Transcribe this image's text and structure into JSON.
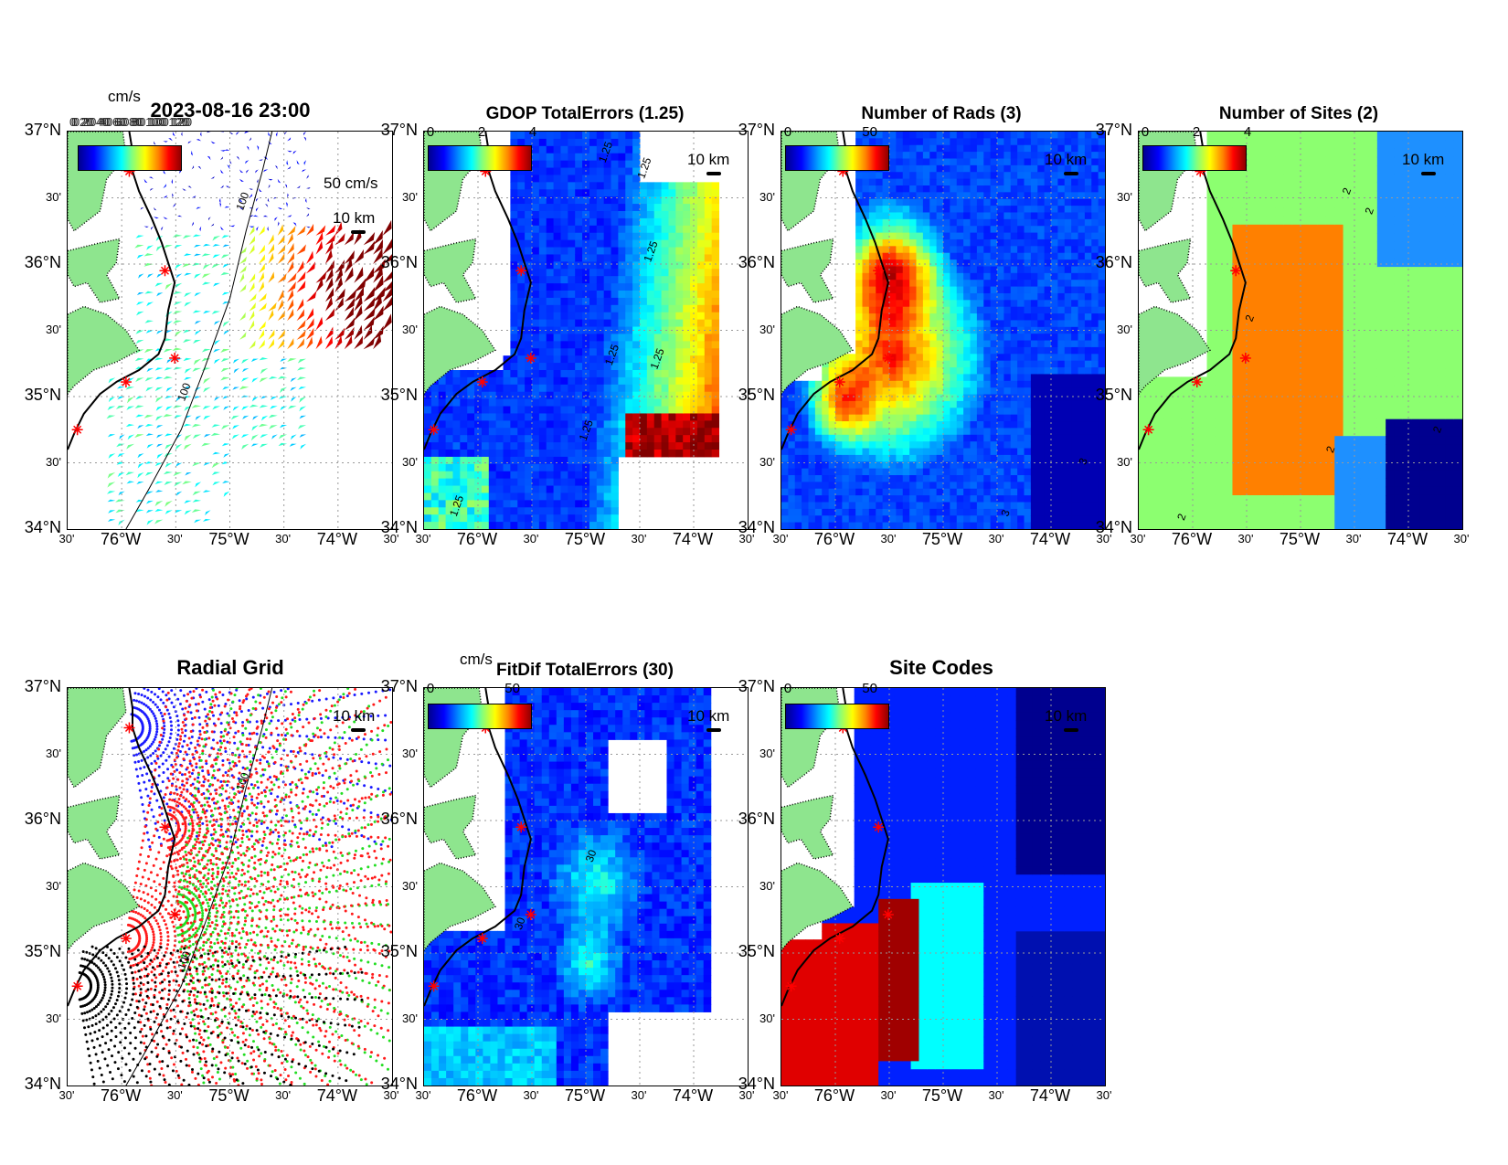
{
  "colors": {
    "land": "#8ee58e",
    "jet_low": "#00008f",
    "jet_high": "#8f0000",
    "site_marker": "#ff0000",
    "grid_blue": "#1a1aff",
    "grid_red": "#ff1a1a",
    "grid_green": "#22dd22",
    "grid_black": "#000000"
  },
  "axes": {
    "y_labels": [
      "37°N",
      "30'",
      "36°N",
      "30'",
      "35°N",
      "30'",
      "34°N"
    ],
    "x_labels": [
      "30'",
      "76°W",
      "30'",
      "75°W",
      "30'",
      "74°W",
      "30'"
    ],
    "lat_range": [
      34,
      37
    ],
    "lon_range": [
      -76.5,
      -73.5
    ]
  },
  "panels": [
    {
      "id": "currents",
      "title": "2023-08-16 23:00",
      "cbar_unit": "cm/s",
      "cbar_ticks": [],
      "overlap_text": "0 20 40 60 80 100 120",
      "vector_scale_label": "50 cm/s",
      "scale_label": "10 km",
      "contour_labels": [
        "100",
        "100"
      ]
    },
    {
      "id": "gdop",
      "title": "GDOP TotalErrors (1.25)",
      "cbar_unit": "",
      "cbar_ticks": [
        "0",
        "2",
        "4"
      ],
      "scale_label": "10 km",
      "contour_labels": [
        "1.25",
        "1.25",
        "1.25",
        "1.25",
        "1.25",
        "1.25",
        "1.25"
      ]
    },
    {
      "id": "rads",
      "title": "Number of Rads (3)",
      "cbar_unit": "",
      "cbar_ticks": [
        "0",
        "50"
      ],
      "scale_label": "10 km",
      "contour_labels": [
        "3",
        "3"
      ]
    },
    {
      "id": "sites",
      "title": "Number of Sites (2)",
      "cbar_unit": "",
      "cbar_ticks": [
        "0",
        "2",
        "4"
      ],
      "scale_label": "10 km",
      "contour_labels": [
        "2",
        "2",
        "2",
        "2",
        "2",
        "2"
      ]
    },
    {
      "id": "radialgrid",
      "title": "Radial Grid",
      "cbar_unit": "",
      "cbar_ticks": [],
      "scale_label": "10 km",
      "contour_labels": [
        "100",
        "100"
      ]
    },
    {
      "id": "fitdif",
      "title": "FitDif TotalErrors (30)",
      "cbar_unit": "cm/s",
      "cbar_ticks": [
        "0",
        "50"
      ],
      "scale_label": "10 km",
      "contour_labels": [
        "30",
        "30"
      ]
    },
    {
      "id": "sitecodes",
      "title": "Site Codes",
      "cbar_unit": "",
      "cbar_ticks": [
        "0",
        "50"
      ],
      "scale_label": "10 km",
      "contour_labels": []
    }
  ]
}
